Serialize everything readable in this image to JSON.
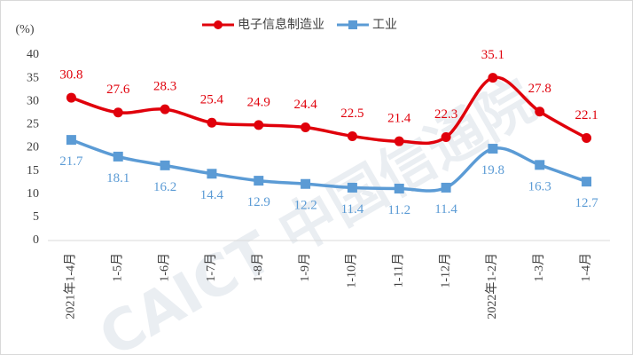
{
  "chart_data": {
    "type": "line",
    "y_unit": "(%)",
    "watermark": "CAICT 中国信通院",
    "categories": [
      "2021年1-4月",
      "1-5月",
      "1-6月",
      "1-7月",
      "1-8月",
      "1-9月",
      "1-10月",
      "1-11月",
      "1-12月",
      "2022年1-2月",
      "1-3月",
      "1-4月"
    ],
    "series": [
      {
        "name": "电子信息制造业",
        "color": "#e0000b",
        "marker": "circle",
        "label_position": "above",
        "values": [
          30.8,
          27.6,
          28.3,
          25.4,
          24.9,
          24.4,
          22.5,
          21.4,
          22.3,
          35.1,
          27.8,
          22.1
        ]
      },
      {
        "name": "工业",
        "color": "#5b9bd5",
        "marker": "square",
        "label_position": "below",
        "values": [
          21.7,
          18.1,
          16.2,
          14.4,
          12.9,
          12.2,
          11.4,
          11.2,
          11.4,
          19.8,
          16.3,
          12.7
        ]
      }
    ],
    "ylim": [
      0,
      40
    ],
    "yticks": [
      0,
      5,
      10,
      15,
      20,
      25,
      30,
      35,
      40
    ],
    "grid": false,
    "legend": "top",
    "smooth": true
  }
}
